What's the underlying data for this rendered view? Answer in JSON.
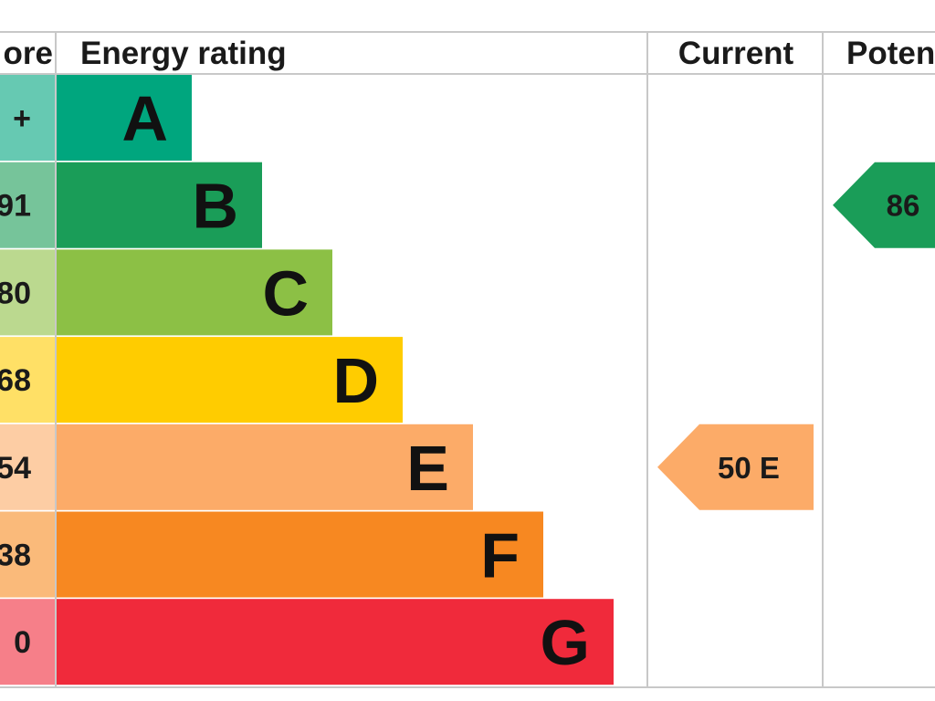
{
  "header": {
    "score": "ore",
    "rating": "Energy rating",
    "current": "Current",
    "potential": "Poten"
  },
  "chart_data": {
    "type": "bar",
    "categories": [
      "A",
      "B",
      "C",
      "D",
      "E",
      "F",
      "G"
    ],
    "score_labels": [
      "+",
      "91",
      "80",
      "68",
      "54",
      "38",
      "0"
    ],
    "bar_colors": [
      "#00a67e",
      "#1a9d58",
      "#8cc045",
      "#ffcc00",
      "#fcab68",
      "#f78821",
      "#f02a3b"
    ],
    "score_colors": [
      "#66c9b2",
      "#76c49a",
      "#bbd98f",
      "#ffe066",
      "#fdcda4",
      "#faba7a",
      "#f67f89"
    ],
    "current": {
      "value": "50",
      "band": "E",
      "label": "50 E",
      "color": "#fcab68"
    },
    "potential": {
      "value": "86",
      "band": "B",
      "label": "86",
      "color": "#1a9d58"
    }
  }
}
